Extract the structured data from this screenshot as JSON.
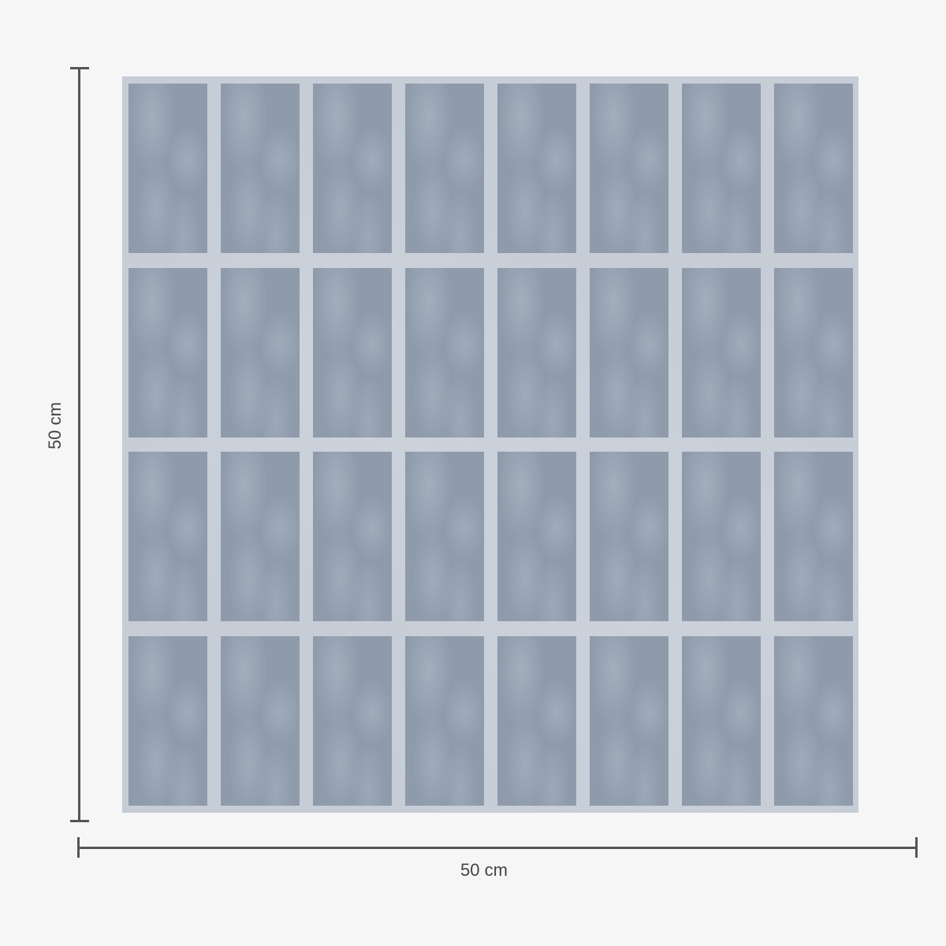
{
  "product": {
    "rows": 4,
    "columns": 8,
    "colors": {
      "background": "#f6f6f6",
      "tile": "#c6cdd7",
      "shape": "#8f9bab",
      "dimension_line": "#555555"
    }
  },
  "dimensions": {
    "height_label": "50 cm",
    "width_label": "50 cm"
  }
}
